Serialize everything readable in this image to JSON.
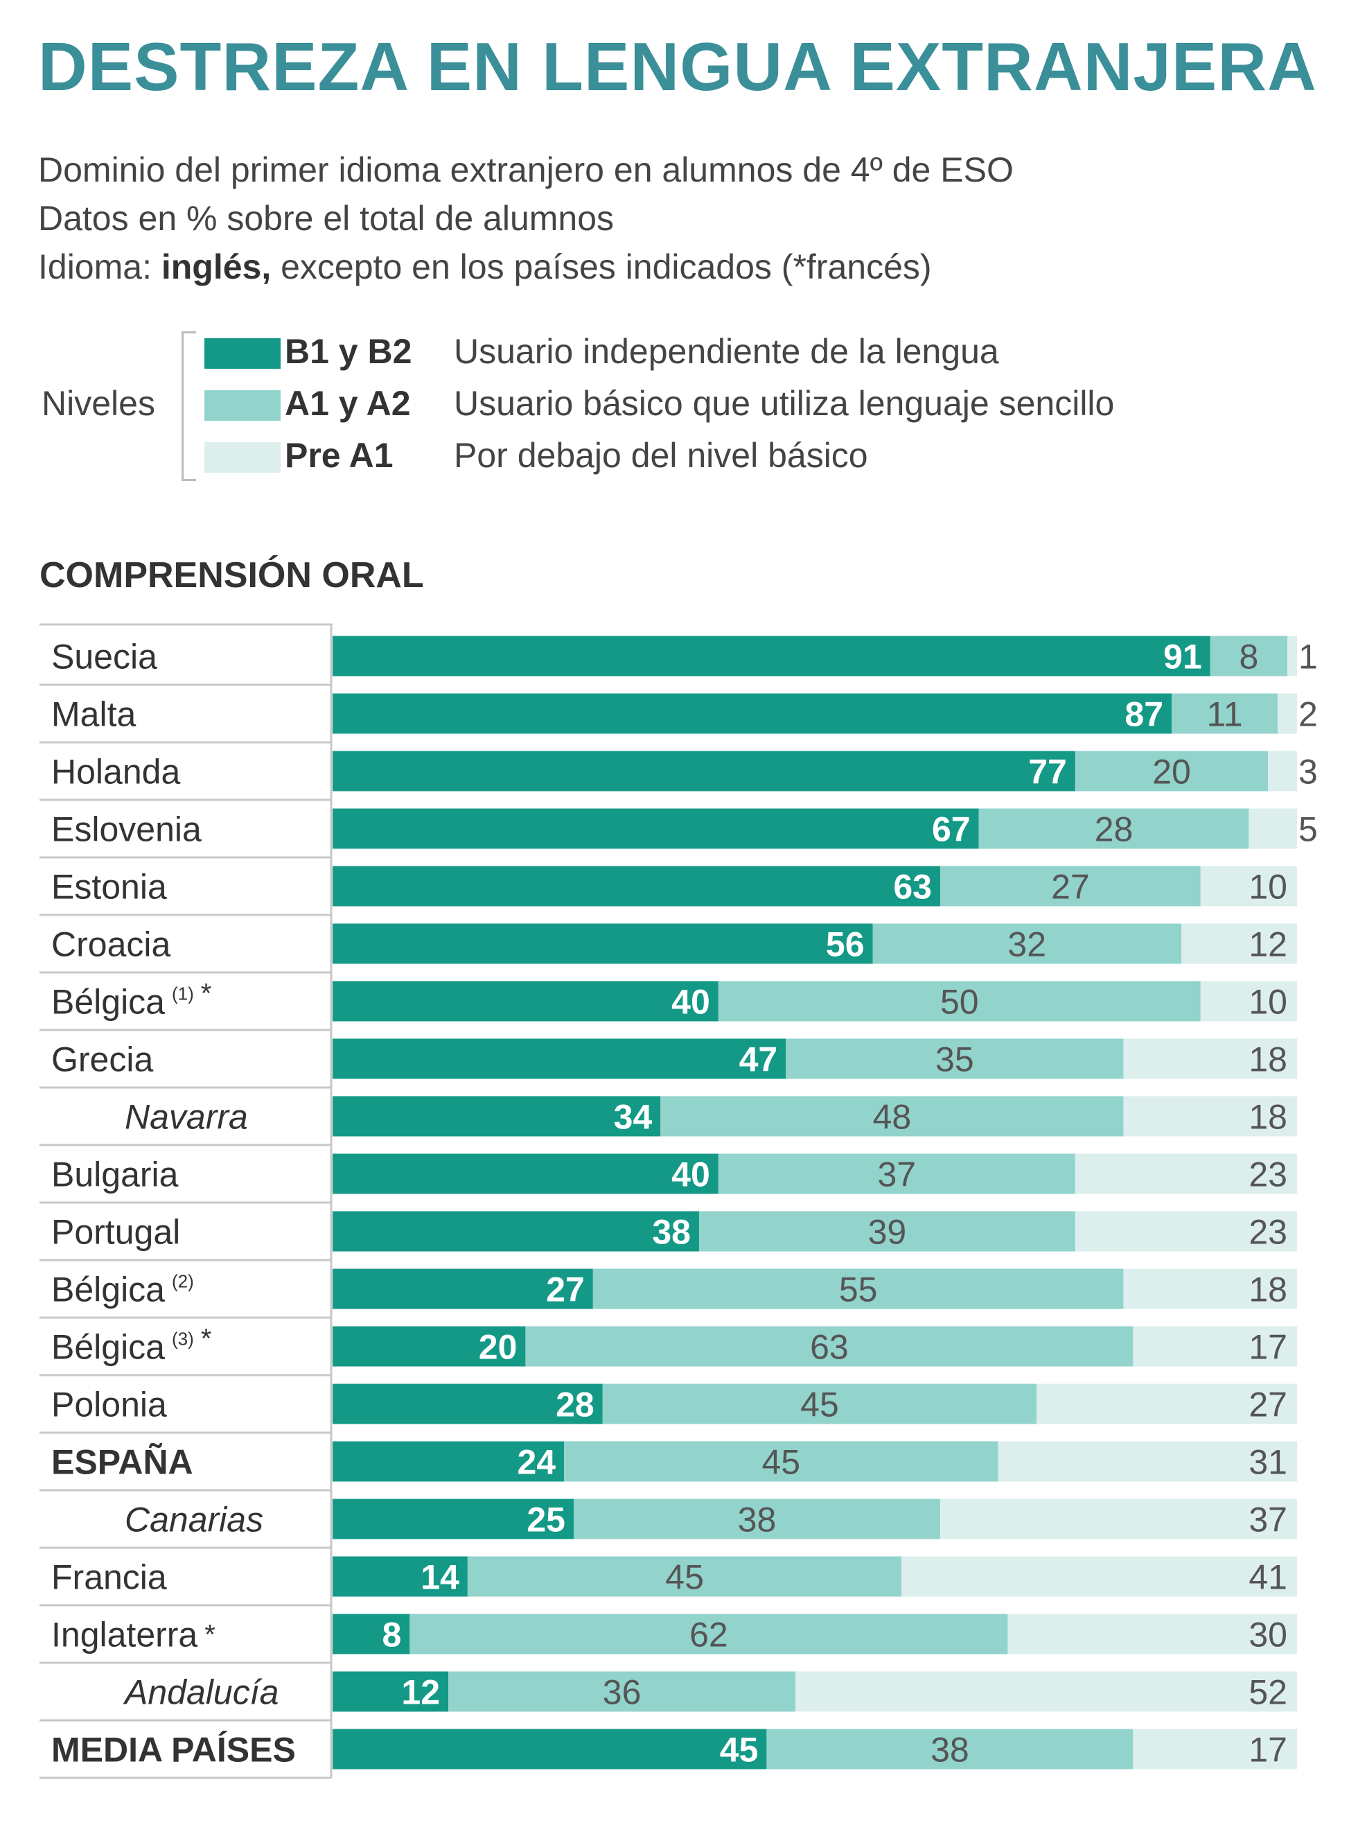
{
  "header": {
    "title": "DESTREZA EN LENGUA EXTRANJERA",
    "subtitle_1": "Dominio del primer idioma extranjero en alumnos de 4º de ESO",
    "subtitle_2": "Datos en % sobre el total de alumnos",
    "subtitle_3_prefix": "Idioma: ",
    "subtitle_3_bold": "inglés,",
    "subtitle_3_suffix": " excepto en los países indicados (*francés)"
  },
  "legend": {
    "label": "Niveles",
    "items": [
      {
        "code": "B1 y B2",
        "desc": "Usuario independiente de la lengua",
        "color": "#149987"
      },
      {
        "code": "A1 y A2",
        "desc": "Usuario básico que utiliza lenguaje sencillo",
        "color": "#92d3cc"
      },
      {
        "code": "Pre A1",
        "desc": "Por debajo del nivel básico",
        "color": "#dcefed"
      }
    ]
  },
  "section_title": "COMPRENSIÓN ORAL",
  "chart_data": {
    "type": "bar",
    "orientation": "horizontal",
    "stacked": true,
    "xlim": [
      0,
      100
    ],
    "categories": [
      {
        "name": "Suecia",
        "sup": "",
        "star": "",
        "style": "normal"
      },
      {
        "name": "Malta",
        "sup": "",
        "star": "",
        "style": "normal"
      },
      {
        "name": "Holanda",
        "sup": "",
        "star": "",
        "style": "normal"
      },
      {
        "name": "Eslovenia",
        "sup": "",
        "star": "",
        "style": "normal"
      },
      {
        "name": "Estonia",
        "sup": "",
        "star": "",
        "style": "normal"
      },
      {
        "name": "Croacia",
        "sup": "",
        "star": "",
        "style": "normal"
      },
      {
        "name": "Bélgica",
        "sup": "(1)",
        "star": "*",
        "style": "normal"
      },
      {
        "name": "Grecia",
        "sup": "",
        "star": "",
        "style": "normal"
      },
      {
        "name": "Navarra",
        "sup": "",
        "star": "",
        "style": "italic"
      },
      {
        "name": "Bulgaria",
        "sup": "",
        "star": "",
        "style": "normal"
      },
      {
        "name": "Portugal",
        "sup": "",
        "star": "",
        "style": "normal"
      },
      {
        "name": "Bélgica",
        "sup": "(2)",
        "star": "",
        "style": "normal"
      },
      {
        "name": "Bélgica",
        "sup": "(3)",
        "star": "*",
        "style": "normal"
      },
      {
        "name": "Polonia",
        "sup": "",
        "star": "",
        "style": "normal"
      },
      {
        "name": "ESPAÑA",
        "sup": "",
        "star": "",
        "style": "bold"
      },
      {
        "name": "Canarias",
        "sup": "",
        "star": "",
        "style": "italic"
      },
      {
        "name": "Francia",
        "sup": "",
        "star": "",
        "style": "normal"
      },
      {
        "name": "Inglaterra",
        "sup": "",
        "star": "*",
        "style": "normal"
      },
      {
        "name": "Andalucía",
        "sup": "",
        "star": "",
        "style": "italic"
      },
      {
        "name": "MEDIA PAÍSES",
        "sup": "",
        "star": "",
        "style": "bold"
      }
    ],
    "series": [
      {
        "name": "B1 y B2",
        "color": "#149987",
        "values": [
          91,
          87,
          77,
          67,
          63,
          56,
          40,
          47,
          34,
          40,
          38,
          27,
          20,
          28,
          24,
          25,
          14,
          8,
          12,
          45
        ]
      },
      {
        "name": "A1 y A2",
        "color": "#92d3cc",
        "values": [
          8,
          11,
          20,
          28,
          27,
          32,
          50,
          35,
          48,
          37,
          39,
          55,
          63,
          45,
          45,
          38,
          45,
          62,
          36,
          38
        ]
      },
      {
        "name": "Pre A1",
        "color": "#dcefed",
        "values": [
          1,
          2,
          3,
          5,
          10,
          12,
          10,
          18,
          18,
          23,
          23,
          18,
          17,
          27,
          31,
          37,
          41,
          30,
          52,
          17
        ]
      }
    ]
  }
}
